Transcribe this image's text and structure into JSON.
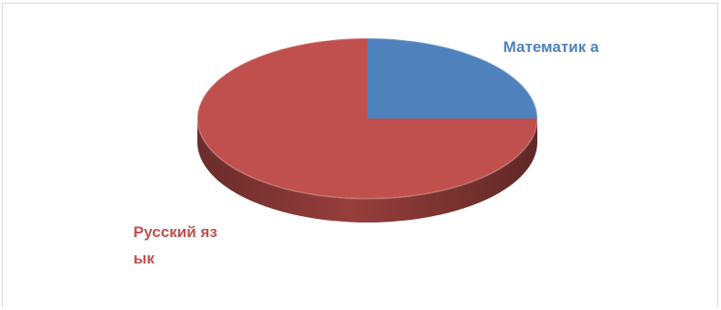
{
  "chart_data": {
    "type": "pie",
    "is_3d": true,
    "categories": [
      "Математика",
      "Русский язык"
    ],
    "values": [
      25,
      75
    ],
    "colors": [
      "#4f81bd",
      "#c0504d"
    ],
    "data_labels": [
      "Математик а",
      "Русский язык"
    ],
    "title": "",
    "legend": "none"
  }
}
